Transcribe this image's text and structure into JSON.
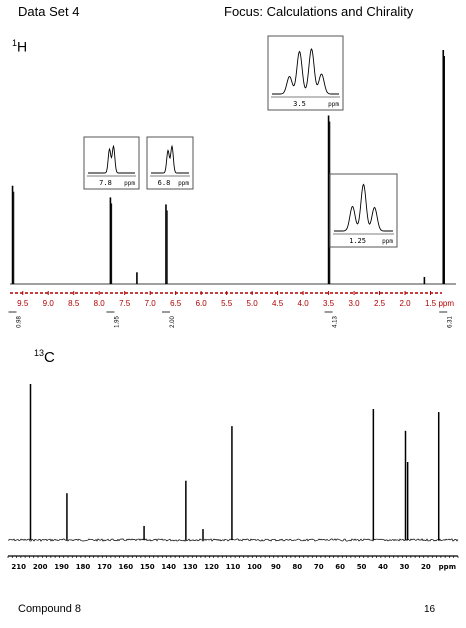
{
  "header": {
    "left": "Data Set 4",
    "right": "Focus: Calculations and Chirality"
  },
  "footer": {
    "left": "Compound 8",
    "page": "16"
  },
  "colors": {
    "axis_red": "#b00000",
    "trace": "#000000",
    "inset_border": "#555555"
  },
  "chart_data": [
    {
      "type": "line",
      "title": "1H",
      "x_unit": "ppm",
      "xlim": [
        9.75,
        1.0
      ],
      "x_ticks": [
        "9.5",
        "9.0",
        "8.5",
        "8.0",
        "7.5",
        "7.0",
        "6.5",
        "6.0",
        "5.5",
        "5.0",
        "4.5",
        "4.0",
        "3.5",
        "3.0",
        "2.5",
        "2.0",
        "1.5"
      ],
      "peaks": [
        {
          "x": 9.7,
          "height": 0.42,
          "integral": "0.98"
        },
        {
          "x": 7.78,
          "height": 0.37,
          "integral": "1.95"
        },
        {
          "x": 7.26,
          "height": 0.05
        },
        {
          "x": 6.69,
          "height": 0.34,
          "integral": "2.00"
        },
        {
          "x": 3.5,
          "height": 0.72,
          "integral": "4.13"
        },
        {
          "x": 1.62,
          "height": 0.03
        },
        {
          "x": 1.25,
          "height": 1.0,
          "integral": "6.31"
        }
      ],
      "integrals": [
        "0.98",
        "1.95",
        "2.00",
        "4.13",
        "6.31"
      ],
      "insets": [
        {
          "label": "7.8",
          "unit": "ppm"
        },
        {
          "label": "6.8",
          "unit": "ppm"
        },
        {
          "label": "3.5",
          "unit": "ppm"
        },
        {
          "label": "1.25",
          "unit": "ppm"
        }
      ]
    },
    {
      "type": "line",
      "title": "13C",
      "x_unit": "ppm",
      "xlim": [
        215,
        5
      ],
      "x_ticks": [
        "210",
        "200",
        "190",
        "180",
        "170",
        "160",
        "150",
        "140",
        "130",
        "120",
        "110",
        "100",
        "90",
        "80",
        "70",
        "60",
        "50",
        "40",
        "30",
        "20"
      ],
      "peaks": [
        {
          "x": 204.5,
          "height": 1.0
        },
        {
          "x": 187.5,
          "height": 0.3
        },
        {
          "x": 151.5,
          "height": 0.09
        },
        {
          "x": 132.0,
          "height": 0.38
        },
        {
          "x": 124.0,
          "height": 0.07
        },
        {
          "x": 110.5,
          "height": 0.73
        },
        {
          "x": 44.5,
          "height": 0.84
        },
        {
          "x": 29.5,
          "height": 0.7
        },
        {
          "x": 28.5,
          "height": 0.5
        },
        {
          "x": 14.0,
          "height": 0.82
        }
      ]
    }
  ]
}
